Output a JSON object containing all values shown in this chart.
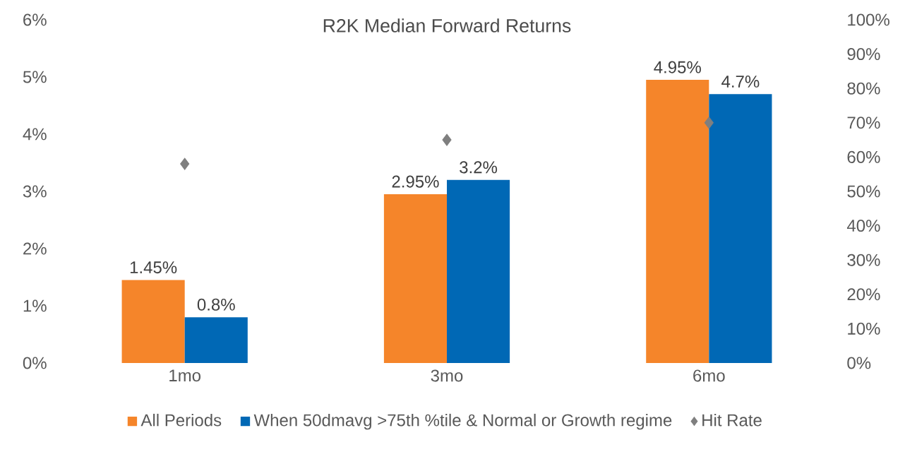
{
  "chart_data": {
    "type": "bar",
    "title": "R2K Median Forward Returns",
    "categories": [
      "1mo",
      "3mo",
      "6mo"
    ],
    "series": [
      {
        "name": "All Periods",
        "color": "#f5852a",
        "values": [
          1.45,
          2.95,
          4.95
        ],
        "value_labels": [
          "1.45%",
          "2.95%",
          "4.95%"
        ]
      },
      {
        "name": "When 50dmavg >75th %tile & Normal or Growth regime",
        "color": "#0068b5",
        "values": [
          0.8,
          3.2,
          4.7
        ],
        "value_labels": [
          "0.8%",
          "3.2%",
          "4.7%"
        ]
      },
      {
        "name": "Hit Rate",
        "type": "scatter",
        "axis": "y2",
        "marker": "diamond",
        "color": "#7f7f7f",
        "values": [
          58,
          65,
          70
        ]
      }
    ],
    "ylim": [
      0,
      6
    ],
    "yticks": [
      {
        "value": 0,
        "label": "0%"
      },
      {
        "value": 1,
        "label": "1%"
      },
      {
        "value": 2,
        "label": "2%"
      },
      {
        "value": 3,
        "label": "3%"
      },
      {
        "value": 4,
        "label": "4%"
      },
      {
        "value": 5,
        "label": "5%"
      },
      {
        "value": 6,
        "label": "6%"
      }
    ],
    "y2lim": [
      0,
      100
    ],
    "y2ticks": [
      {
        "value": 0,
        "label": "0%"
      },
      {
        "value": 10,
        "label": "10%"
      },
      {
        "value": 20,
        "label": "20%"
      },
      {
        "value": 30,
        "label": "30%"
      },
      {
        "value": 40,
        "label": "40%"
      },
      {
        "value": 50,
        "label": "50%"
      },
      {
        "value": 60,
        "label": "60%"
      },
      {
        "value": 70,
        "label": "70%"
      },
      {
        "value": 80,
        "label": "80%"
      },
      {
        "value": 90,
        "label": "90%"
      },
      {
        "value": 100,
        "label": "100%"
      }
    ],
    "legend": "bottom"
  }
}
